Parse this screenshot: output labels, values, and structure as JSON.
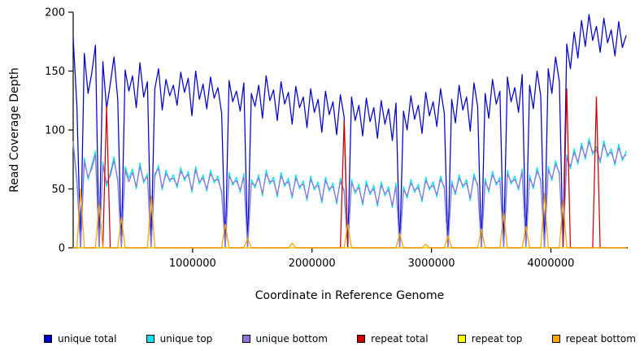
{
  "figure": {
    "background": "#FFFFFF"
  },
  "chart_data": {
    "type": "line",
    "title": "",
    "xlabel": "Coordinate in Reference Genome",
    "ylabel": "Read Coverage Depth",
    "xlim": [
      0,
      4630000
    ],
    "ylim": [
      0,
      200
    ],
    "grid": false,
    "legend_position": "bottom",
    "x_spacing": "even",
    "n_points": 150,
    "x_ticks": [
      {
        "value": 1000000,
        "label": "1000000"
      },
      {
        "value": 2000000,
        "label": "2000000"
      },
      {
        "value": 3000000,
        "label": "3000000"
      },
      {
        "value": 4000000,
        "label": "4000000"
      }
    ],
    "y_ticks": [
      {
        "value": 0,
        "label": "0"
      },
      {
        "value": 50,
        "label": "50"
      },
      {
        "value": 100,
        "label": "100"
      },
      {
        "value": 150,
        "label": "150"
      },
      {
        "value": 200,
        "label": "200"
      }
    ],
    "series": [
      {
        "name": "unique total",
        "color": "#0000CD",
        "values": [
          178,
          120,
          0,
          165,
          131,
          148,
          172,
          0,
          158,
          118,
          139,
          162,
          126,
          0,
          151,
          133,
          146,
          119,
          157,
          128,
          141,
          0,
          135,
          152,
          117,
          143,
          129,
          138,
          121,
          149,
          132,
          144,
          112,
          150,
          126,
          139,
          118,
          145,
          127,
          136,
          114,
          0,
          142,
          124,
          133,
          116,
          140,
          0,
          131,
          120,
          138,
          110,
          146,
          125,
          134,
          108,
          141,
          122,
          132,
          105,
          137,
          119,
          128,
          102,
          135,
          115,
          126,
          98,
          133,
          113,
          124,
          96,
          130,
          111,
          0,
          128,
          108,
          121,
          95,
          127,
          107,
          119,
          93,
          125,
          105,
          118,
          91,
          123,
          0,
          116,
          100,
          129,
          109,
          121,
          97,
          132,
          112,
          124,
          103,
          135,
          114,
          0,
          126,
          106,
          138,
          117,
          128,
          99,
          140,
          120,
          0,
          131,
          110,
          143,
          122,
          133,
          0,
          145,
          124,
          136,
          115,
          147,
          0,
          138,
          118,
          150,
          129,
          0,
          152,
          131,
          162,
          141,
          0,
          173,
          152,
          183,
          161,
          193,
          171,
          198,
          176,
          188,
          166,
          195,
          174,
          185,
          163,
          192,
          170,
          180
        ]
      },
      {
        "name": "unique top",
        "color": "#00E5EE",
        "values": [
          88,
          55,
          0,
          76,
          58,
          70,
          82,
          0,
          73,
          52,
          64,
          77,
          56,
          0,
          69,
          59,
          67,
          50,
          72,
          55,
          63,
          0,
          60,
          70,
          49,
          66,
          56,
          62,
          51,
          68,
          57,
          65,
          47,
          69,
          54,
          62,
          48,
          66,
          55,
          61,
          46,
          0,
          64,
          53,
          60,
          47,
          63,
          0,
          58,
          51,
          62,
          44,
          66,
          54,
          60,
          43,
          64,
          52,
          59,
          42,
          62,
          50,
          57,
          40,
          61,
          49,
          56,
          38,
          60,
          48,
          55,
          37,
          59,
          47,
          0,
          58,
          46,
          54,
          36,
          57,
          45,
          53,
          35,
          56,
          44,
          52,
          34,
          55,
          0,
          52,
          42,
          58,
          47,
          54,
          39,
          60,
          49,
          56,
          43,
          61,
          50,
          0,
          57,
          45,
          62,
          51,
          58,
          40,
          63,
          52,
          0,
          59,
          47,
          65,
          53,
          60,
          0,
          66,
          54,
          61,
          49,
          67,
          0,
          62,
          50,
          68,
          56,
          0,
          69,
          57,
          74,
          62,
          0,
          79,
          67,
          84,
          71,
          89,
          75,
          93,
          79,
          86,
          72,
          91,
          77,
          84,
          70,
          88,
          74,
          82
        ]
      },
      {
        "name": "unique bottom",
        "color": "#9370DB",
        "values": [
          90,
          58,
          0,
          73,
          60,
          67,
          79,
          0,
          70,
          55,
          61,
          74,
          58,
          0,
          66,
          56,
          64,
          52,
          69,
          57,
          60,
          0,
          63,
          67,
          51,
          63,
          58,
          59,
          53,
          65,
          59,
          62,
          49,
          66,
          56,
          59,
          50,
          63,
          57,
          58,
          48,
          0,
          61,
          55,
          57,
          49,
          60,
          0,
          55,
          53,
          59,
          46,
          63,
          56,
          57,
          45,
          61,
          54,
          56,
          44,
          59,
          52,
          54,
          42,
          58,
          51,
          53,
          40,
          57,
          50,
          52,
          39,
          56,
          49,
          0,
          55,
          48,
          51,
          38,
          54,
          47,
          50,
          37,
          53,
          46,
          49,
          36,
          52,
          0,
          49,
          44,
          55,
          49,
          51,
          41,
          57,
          51,
          53,
          45,
          58,
          52,
          0,
          54,
          47,
          59,
          53,
          55,
          42,
          60,
          54,
          0,
          56,
          49,
          62,
          55,
          57,
          0,
          63,
          56,
          58,
          51,
          64,
          0,
          59,
          52,
          65,
          58,
          0,
          66,
          59,
          71,
          64,
          0,
          76,
          69,
          81,
          73,
          86,
          77,
          90,
          81,
          83,
          74,
          88,
          79,
          81,
          72,
          85,
          76,
          79
        ]
      },
      {
        "name": "repeat total",
        "color": "#CD0000",
        "values": [
          0,
          0,
          0,
          0,
          0,
          0,
          0,
          0,
          0,
          120,
          0,
          0,
          0,
          0,
          0,
          0,
          0,
          0,
          0,
          0,
          0,
          0,
          0,
          0,
          0,
          0,
          0,
          0,
          0,
          0,
          0,
          0,
          0,
          0,
          0,
          0,
          0,
          0,
          0,
          0,
          0,
          0,
          0,
          0,
          0,
          0,
          0,
          0,
          0,
          0,
          0,
          0,
          0,
          0,
          0,
          0,
          0,
          0,
          0,
          0,
          0,
          0,
          0,
          0,
          0,
          0,
          0,
          0,
          0,
          0,
          0,
          0,
          0,
          108,
          0,
          0,
          0,
          0,
          0,
          0,
          0,
          0,
          0,
          0,
          0,
          0,
          0,
          0,
          0,
          0,
          0,
          0,
          0,
          0,
          0,
          0,
          0,
          0,
          0,
          0,
          0,
          0,
          0,
          0,
          0,
          0,
          0,
          0,
          0,
          0,
          0,
          0,
          0,
          0,
          0,
          0,
          0,
          0,
          0,
          0,
          0,
          0,
          0,
          0,
          0,
          0,
          0,
          0,
          0,
          0,
          0,
          0,
          0,
          135,
          0,
          0,
          0,
          0,
          0,
          0,
          0,
          128,
          0,
          0,
          0,
          0,
          0,
          0,
          0,
          0
        ]
      },
      {
        "name": "repeat top",
        "color": "#FFFF00",
        "values": [
          0,
          0,
          0,
          0,
          0,
          0,
          0,
          0,
          0,
          0,
          0,
          0,
          0,
          0,
          0,
          0,
          0,
          0,
          0,
          0,
          0,
          0,
          0,
          0,
          0,
          0,
          0,
          0,
          0,
          0,
          0,
          0,
          0,
          0,
          0,
          0,
          0,
          0,
          0,
          0,
          0,
          0,
          0,
          0,
          0,
          0,
          0,
          0,
          0,
          0,
          0,
          0,
          0,
          0,
          0,
          0,
          0,
          0,
          0,
          0,
          0,
          0,
          0,
          0,
          0,
          0,
          0,
          0,
          0,
          0,
          0,
          0,
          0,
          0,
          0,
          0,
          0,
          0,
          0,
          0,
          0,
          0,
          0,
          0,
          0,
          0,
          0,
          0,
          0,
          0,
          0,
          0,
          0,
          0,
          0,
          0,
          0,
          0,
          0,
          0,
          0,
          0,
          0,
          0,
          0,
          0,
          0,
          0,
          0,
          0,
          0,
          0,
          0,
          0,
          0,
          0,
          0,
          0,
          0,
          0,
          0,
          0,
          0,
          0,
          0,
          0,
          0,
          0,
          0,
          0,
          0,
          0,
          0,
          0,
          0,
          0,
          0,
          0,
          0,
          0,
          0,
          0,
          0,
          0,
          0,
          0,
          0,
          0,
          0,
          0
        ]
      },
      {
        "name": "repeat bottom",
        "color": "#FFA500",
        "values": [
          0,
          0,
          50,
          0,
          0,
          0,
          0,
          38,
          0,
          0,
          0,
          0,
          0,
          26,
          0,
          0,
          0,
          0,
          0,
          0,
          0,
          44,
          0,
          0,
          0,
          0,
          0,
          0,
          0,
          0,
          0,
          0,
          0,
          0,
          0,
          0,
          0,
          0,
          0,
          0,
          0,
          20,
          0,
          0,
          0,
          0,
          0,
          8,
          0,
          0,
          0,
          0,
          0,
          0,
          0,
          0,
          0,
          0,
          0,
          4,
          0,
          0,
          0,
          0,
          0,
          0,
          0,
          0,
          0,
          0,
          0,
          0,
          0,
          0,
          20,
          0,
          0,
          0,
          0,
          0,
          0,
          0,
          0,
          0,
          0,
          0,
          0,
          0,
          12,
          0,
          0,
          0,
          0,
          0,
          0,
          3,
          0,
          0,
          0,
          0,
          0,
          10,
          0,
          0,
          0,
          0,
          0,
          0,
          0,
          0,
          16,
          0,
          0,
          0,
          0,
          0,
          30,
          0,
          0,
          0,
          0,
          0,
          18,
          0,
          0,
          0,
          0,
          46,
          0,
          0,
          0,
          0,
          40,
          0,
          0,
          0,
          0,
          0,
          0,
          0,
          0,
          0,
          0,
          0,
          0,
          0,
          0,
          0,
          0,
          0
        ]
      }
    ]
  }
}
